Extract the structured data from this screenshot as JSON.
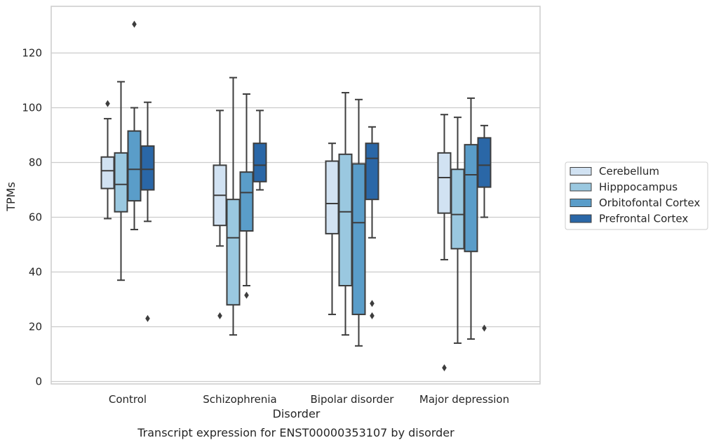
{
  "chart_data": {
    "type": "box",
    "title": "",
    "caption": "Transcript expression for ENST00000353107 by disorder",
    "xlabel": "Disorder",
    "ylabel": "TPMs",
    "ylim": [
      -1,
      137
    ],
    "yticks": [
      0,
      20,
      40,
      60,
      80,
      100,
      120
    ],
    "grid": "horizontal",
    "legend_position": "right",
    "categories": [
      "Control",
      "Schizophrenia",
      "Bipolar disorder",
      "Major depression"
    ],
    "series": [
      {
        "name": "Cerebellum",
        "color": "#d1e2f2",
        "boxes": [
          {
            "whisker_low": 59.5,
            "q1": 70.5,
            "median": 77,
            "q3": 82,
            "whisker_high": 96,
            "outliers": [
              101.5
            ]
          },
          {
            "whisker_low": 49.5,
            "q1": 57,
            "median": 68,
            "q3": 79,
            "whisker_high": 99,
            "outliers": [
              24
            ]
          },
          {
            "whisker_low": 24.5,
            "q1": 54,
            "median": 65,
            "q3": 80.5,
            "whisker_high": 87,
            "outliers": []
          },
          {
            "whisker_low": 44.5,
            "q1": 61.5,
            "median": 74.5,
            "q3": 83.5,
            "whisker_high": 97.5,
            "outliers": [
              5
            ]
          }
        ]
      },
      {
        "name": "Hipppocampus",
        "color": "#9ac8e0",
        "boxes": [
          {
            "whisker_low": 37,
            "q1": 62,
            "median": 72,
            "q3": 83.5,
            "whisker_high": 109.5,
            "outliers": []
          },
          {
            "whisker_low": 17,
            "q1": 28,
            "median": 52.5,
            "q3": 66.5,
            "whisker_high": 111,
            "outliers": []
          },
          {
            "whisker_low": 17,
            "q1": 35,
            "median": 62,
            "q3": 83,
            "whisker_high": 105.5,
            "outliers": []
          },
          {
            "whisker_low": 14,
            "q1": 48.5,
            "median": 61,
            "q3": 77.5,
            "whisker_high": 96.5,
            "outliers": []
          }
        ]
      },
      {
        "name": "Orbitofontal Cortex",
        "color": "#5a9dc9",
        "boxes": [
          {
            "whisker_low": 55.5,
            "q1": 66,
            "median": 77.5,
            "q3": 91.5,
            "whisker_high": 100,
            "outliers": [
              130.5
            ]
          },
          {
            "whisker_low": 35,
            "q1": 55,
            "median": 69,
            "q3": 76.5,
            "whisker_high": 105,
            "outliers": [
              31.5
            ]
          },
          {
            "whisker_low": 13,
            "q1": 24.5,
            "median": 58,
            "q3": 79.5,
            "whisker_high": 103,
            "outliers": []
          },
          {
            "whisker_low": 15.5,
            "q1": 47.5,
            "median": 75.5,
            "q3": 86.5,
            "whisker_high": 103.5,
            "outliers": []
          }
        ]
      },
      {
        "name": "Prefrontal Cortex",
        "color": "#2a67a7",
        "boxes": [
          {
            "whisker_low": 58.5,
            "q1": 70,
            "median": 77.5,
            "q3": 86,
            "whisker_high": 102,
            "outliers": [
              23
            ]
          },
          {
            "whisker_low": 70,
            "q1": 73,
            "median": 79,
            "q3": 87,
            "whisker_high": 99,
            "outliers": []
          },
          {
            "whisker_low": 52.5,
            "q1": 66.5,
            "median": 81.5,
            "q3": 87,
            "whisker_high": 93,
            "outliers": [
              28.5,
              24
            ]
          },
          {
            "whisker_low": 60,
            "q1": 71,
            "median": 79,
            "q3": 89,
            "whisker_high": 93.5,
            "outliers": [
              19.5
            ]
          }
        ]
      }
    ]
  }
}
